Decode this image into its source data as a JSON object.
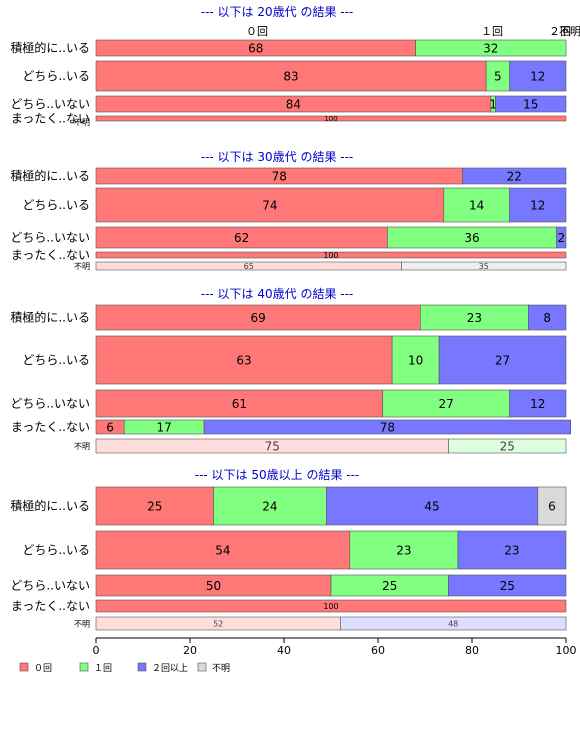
{
  "chart_data": {
    "type": "bar",
    "orientation": "horizontal-stacked-100",
    "colors": {
      "0回": "#ff7777",
      "1回": "#80ff80",
      "2回以上": "#7777ff",
      "不明": "#d9d9d9",
      "不明_light": [
        "#ffdddd",
        "#ddffdd",
        "#ddddff",
        "#eeeeee"
      ],
      "title": "#0000cc"
    },
    "xlim": [
      0,
      100
    ],
    "xticks": [
      "0",
      "20",
      "40",
      "60",
      "80",
      "100"
    ],
    "legend": {
      "position": "bottom-left",
      "items": [
        {
          "label": "０回",
          "key": "0回"
        },
        {
          "label": "１回",
          "key": "1回"
        },
        {
          "label": "２回以上",
          "key": "2回以上"
        },
        {
          "label": "不明",
          "key": "不明"
        }
      ]
    },
    "panels": [
      {
        "title": "--- 以下は 20歳代 の結果 ---",
        "top_labels": [
          "０回",
          "１回",
          "２回",
          "不明"
        ],
        "rows": [
          {
            "label": "積極的に..いる",
            "weight": 16,
            "segments": [
              {
                "k": "0回",
                "v": 68
              },
              {
                "k": "1回",
                "v": 32
              }
            ]
          },
          {
            "label": "どちら..いる",
            "weight": 31,
            "segments": [
              {
                "k": "0回",
                "v": 83
              },
              {
                "k": "1回",
                "v": 5
              },
              {
                "k": "2回以上",
                "v": 12
              }
            ]
          },
          {
            "label": "どちら..いない",
            "weight": 16,
            "segments": [
              {
                "k": "0回",
                "v": 84
              },
              {
                "k": "1回",
                "v": 1
              },
              {
                "k": "2回以上",
                "v": 15
              }
            ]
          },
          {
            "label": "まったく..ない",
            "weight": 1,
            "small": true,
            "segments": [
              {
                "k": "0回",
                "v": 100
              }
            ]
          },
          {
            "label": "不明",
            "weight": 0,
            "small": true,
            "segments": []
          }
        ]
      },
      {
        "title": "--- 以下は 30歳代 の結果 ---",
        "rows": [
          {
            "label": "積極的に..いる",
            "weight": 9,
            "segments": [
              {
                "k": "0回",
                "v": 78
              },
              {
                "k": "2回以上",
                "v": 22
              }
            ]
          },
          {
            "label": "どちら..いる",
            "weight": 34,
            "segments": [
              {
                "k": "0回",
                "v": 74
              },
              {
                "k": "1回",
                "v": 14
              },
              {
                "k": "2回以上",
                "v": 12
              }
            ]
          },
          {
            "label": "どちら..いない",
            "weight": 18,
            "segments": [
              {
                "k": "0回",
                "v": 62
              },
              {
                "k": "1回",
                "v": 36
              },
              {
                "k": "2回以上",
                "v": 2
              }
            ]
          },
          {
            "label": "まったく..ない",
            "weight": 1,
            "small": true,
            "segments": [
              {
                "k": "0回",
                "v": 100
              }
            ]
          },
          {
            "label": "不明",
            "weight": 1,
            "small": true,
            "light": true,
            "segments": [
              {
                "k": "0回",
                "v": 65
              },
              {
                "k": "不明",
                "v": 35
              }
            ]
          }
        ]
      },
      {
        "title": "--- 以下は 40歳代 の結果 ---",
        "rows": [
          {
            "label": "積極的に..いる",
            "weight": 13,
            "segments": [
              {
                "k": "0回",
                "v": 69
              },
              {
                "k": "1回",
                "v": 23
              },
              {
                "k": "2回以上",
                "v": 8
              }
            ]
          },
          {
            "label": "どちら..いる",
            "weight": 30,
            "segments": [
              {
                "k": "0回",
                "v": 63
              },
              {
                "k": "1回",
                "v": 10
              },
              {
                "k": "2回以上",
                "v": 27
              }
            ]
          },
          {
            "label": "どちら..いない",
            "weight": 16,
            "segments": [
              {
                "k": "0回",
                "v": 61
              },
              {
                "k": "1回",
                "v": 27
              },
              {
                "k": "2回以上",
                "v": 12
              }
            ]
          },
          {
            "label": "まったく..ない",
            "weight": 4,
            "segments": [
              {
                "k": "0回",
                "v": 6
              },
              {
                "k": "1回",
                "v": 17
              },
              {
                "k": "2回以上",
                "v": 78
              }
            ]
          },
          {
            "label": "不明",
            "weight": 1,
            "small": true,
            "light": true,
            "segments": [
              {
                "k": "0回",
                "v": 75
              },
              {
                "k": "1回",
                "v": 25
              }
            ]
          }
        ]
      },
      {
        "title": "--- 以下は 50歳以上 の結果 ---",
        "rows": [
          {
            "label": "積極的に..いる",
            "weight": 22,
            "segments": [
              {
                "k": "0回",
                "v": 25
              },
              {
                "k": "1回",
                "v": 24
              },
              {
                "k": "2回以上",
                "v": 45
              },
              {
                "k": "不明",
                "v": 6
              }
            ]
          },
          {
            "label": "どちら..いる",
            "weight": 21,
            "segments": [
              {
                "k": "0回",
                "v": 54
              },
              {
                "k": "1回",
                "v": 23
              },
              {
                "k": "2回以上",
                "v": 23
              }
            ]
          },
          {
            "label": "どちら..いない",
            "weight": 13,
            "segments": [
              {
                "k": "0回",
                "v": 50
              },
              {
                "k": "1回",
                "v": 25
              },
              {
                "k": "2回以上",
                "v": 25
              }
            ]
          },
          {
            "label": "まったく..ない",
            "weight": 4,
            "segments": [
              {
                "k": "0回",
                "v": 100
              }
            ]
          },
          {
            "label": "不明",
            "weight": 1,
            "small": true,
            "light": true,
            "segments": [
              {
                "k": "0回",
                "v": 52
              },
              {
                "k": "2回以上",
                "v": 48
              }
            ]
          }
        ]
      }
    ]
  }
}
